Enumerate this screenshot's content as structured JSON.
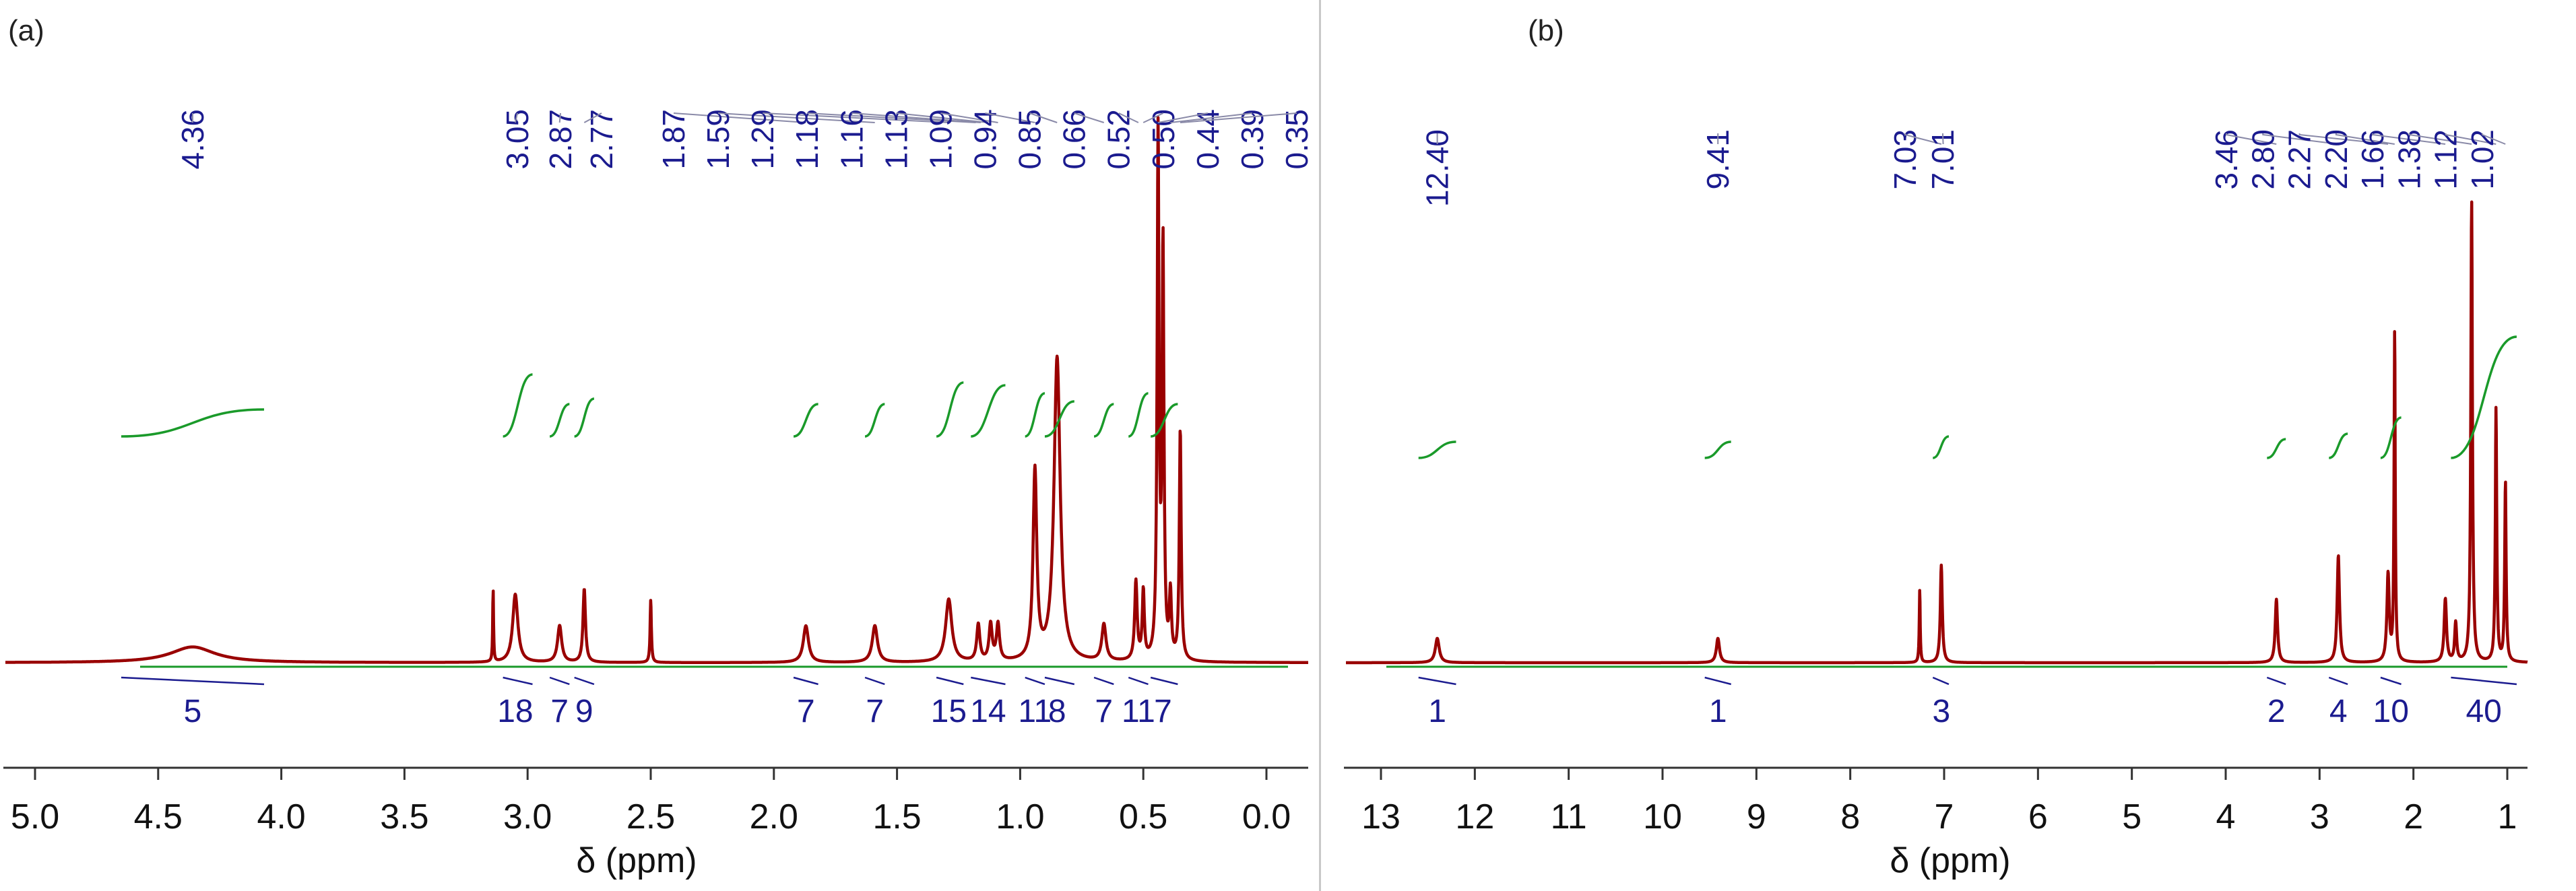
{
  "colors": {
    "spectrum": "#990000",
    "integral": "#1a9a2a",
    "label": "#1b1b8f",
    "axis": "#333333",
    "leader": "#8a8aa8"
  },
  "chart_data": [
    {
      "type": "line",
      "panel": "(a)",
      "xlabel": "δ (ppm)",
      "xlim": [
        5.25,
        -0.2
      ],
      "ticks": [
        5.0,
        4.5,
        4.0,
        3.5,
        3.0,
        2.5,
        2.0,
        1.5,
        1.0,
        0.5,
        0.0
      ],
      "tick_labels": [
        "5.0",
        "4.5",
        "4.0",
        "3.5",
        "3.0",
        "2.5",
        "2.0",
        "1.5",
        "1.0",
        "0.5",
        "0.0"
      ],
      "peak_labels": [
        "4.36",
        "3.05",
        "2.87",
        "2.77",
        "1.87",
        "1.59",
        "1.29",
        "1.18",
        "1.16",
        "1.13",
        "1.09",
        "0.94",
        "0.85",
        "0.66",
        "0.52",
        "0.50",
        "0.44",
        "0.39",
        "0.35"
      ],
      "peaks": [
        {
          "ppm": 4.36,
          "height": 0.03,
          "width": 0.22
        },
        {
          "ppm": 3.14,
          "height": 0.14,
          "width": 0.004
        },
        {
          "ppm": 3.05,
          "height": 0.13,
          "width": 0.025
        },
        {
          "ppm": 2.87,
          "height": 0.07,
          "width": 0.02
        },
        {
          "ppm": 2.77,
          "height": 0.14,
          "width": 0.012
        },
        {
          "ppm": 2.5,
          "height": 0.12,
          "width": 0.006
        },
        {
          "ppm": 1.87,
          "height": 0.07,
          "width": 0.025
        },
        {
          "ppm": 1.59,
          "height": 0.07,
          "width": 0.025
        },
        {
          "ppm": 1.29,
          "height": 0.12,
          "width": 0.03
        },
        {
          "ppm": 1.17,
          "height": 0.07,
          "width": 0.015
        },
        {
          "ppm": 1.12,
          "height": 0.07,
          "width": 0.015
        },
        {
          "ppm": 1.09,
          "height": 0.07,
          "width": 0.015
        },
        {
          "ppm": 0.94,
          "height": 0.36,
          "width": 0.018
        },
        {
          "ppm": 0.85,
          "height": 0.58,
          "width": 0.03
        },
        {
          "ppm": 0.66,
          "height": 0.07,
          "width": 0.02
        },
        {
          "ppm": 0.53,
          "height": 0.15,
          "width": 0.012
        },
        {
          "ppm": 0.5,
          "height": 0.13,
          "width": 0.01
        },
        {
          "ppm": 0.44,
          "height": 1.0,
          "width": 0.009
        },
        {
          "ppm": 0.42,
          "height": 0.78,
          "width": 0.009
        },
        {
          "ppm": 0.39,
          "height": 0.12,
          "width": 0.01
        },
        {
          "ppm": 0.35,
          "height": 0.44,
          "width": 0.009
        }
      ],
      "integrations": [
        {
          "ppm": 4.36,
          "range": [
            4.65,
            4.07
          ],
          "value": "5"
        },
        {
          "ppm": 3.05,
          "range": [
            3.1,
            2.98
          ],
          "value": "18"
        },
        {
          "ppm": 2.87,
          "range": [
            2.91,
            2.83
          ],
          "value": "7"
        },
        {
          "ppm": 2.77,
          "range": [
            2.81,
            2.73
          ],
          "value": "9"
        },
        {
          "ppm": 1.87,
          "range": [
            1.92,
            1.82
          ],
          "value": "7"
        },
        {
          "ppm": 1.59,
          "range": [
            1.63,
            1.55
          ],
          "value": "7"
        },
        {
          "ppm": 1.29,
          "range": [
            1.34,
            1.23
          ],
          "value": "15"
        },
        {
          "ppm": 1.13,
          "range": [
            1.2,
            1.06
          ],
          "value": "14"
        },
        {
          "ppm": 0.94,
          "range": [
            0.98,
            0.9
          ],
          "value": "11"
        },
        {
          "ppm": 0.85,
          "range": [
            0.9,
            0.78
          ],
          "value": "8"
        },
        {
          "ppm": 0.66,
          "range": [
            0.7,
            0.62
          ],
          "value": "7"
        },
        {
          "ppm": 0.52,
          "range": [
            0.56,
            0.48
          ],
          "value": "11"
        },
        {
          "ppm": 0.42,
          "range": [
            0.47,
            0.36
          ],
          "value": "7"
        }
      ]
    },
    {
      "type": "line",
      "panel": "(b)",
      "xlabel": "δ (ppm)",
      "xlim": [
        13.6,
        0.2
      ],
      "ticks": [
        13,
        12,
        11,
        10,
        9,
        8,
        7,
        6,
        5,
        4,
        3,
        2,
        1
      ],
      "tick_labels": [
        "13",
        "12",
        "11",
        "10",
        "9",
        "8",
        "7",
        "6",
        "5",
        "4",
        "3",
        "2",
        "1"
      ],
      "peak_labels": [
        "12.40",
        "9.41",
        "7.03",
        "7.01",
        "3.46",
        "2.80",
        "2.27",
        "2.20",
        "1.66",
        "1.38",
        "1.12",
        "1.02"
      ],
      "peaks": [
        {
          "ppm": 12.4,
          "height": 0.05,
          "width": 0.05
        },
        {
          "ppm": 9.41,
          "height": 0.05,
          "width": 0.04
        },
        {
          "ppm": 7.26,
          "height": 0.15,
          "width": 0.012
        },
        {
          "ppm": 7.03,
          "height": 0.2,
          "width": 0.025
        },
        {
          "ppm": 3.46,
          "height": 0.13,
          "width": 0.03
        },
        {
          "ppm": 2.8,
          "height": 0.22,
          "width": 0.03
        },
        {
          "ppm": 2.27,
          "height": 0.18,
          "width": 0.03
        },
        {
          "ppm": 2.2,
          "height": 0.68,
          "width": 0.015
        },
        {
          "ppm": 1.66,
          "height": 0.13,
          "width": 0.03
        },
        {
          "ppm": 1.55,
          "height": 0.08,
          "width": 0.025
        },
        {
          "ppm": 1.38,
          "height": 0.95,
          "width": 0.02
        },
        {
          "ppm": 1.12,
          "height": 0.52,
          "width": 0.018
        },
        {
          "ppm": 1.02,
          "height": 0.37,
          "width": 0.018
        }
      ],
      "integrations": [
        {
          "ppm": 12.4,
          "range": [
            12.6,
            12.2
          ],
          "value": "1"
        },
        {
          "ppm": 9.41,
          "range": [
            9.55,
            9.27
          ],
          "value": "1"
        },
        {
          "ppm": 7.03,
          "range": [
            7.12,
            6.95
          ],
          "value": "3"
        },
        {
          "ppm": 3.46,
          "range": [
            3.56,
            3.36
          ],
          "value": "2"
        },
        {
          "ppm": 2.8,
          "range": [
            2.9,
            2.7
          ],
          "value": "4"
        },
        {
          "ppm": 2.24,
          "range": [
            2.35,
            2.13
          ],
          "value": "10"
        },
        {
          "ppm": 1.25,
          "range": [
            1.6,
            0.9
          ],
          "value": "40"
        }
      ]
    }
  ]
}
